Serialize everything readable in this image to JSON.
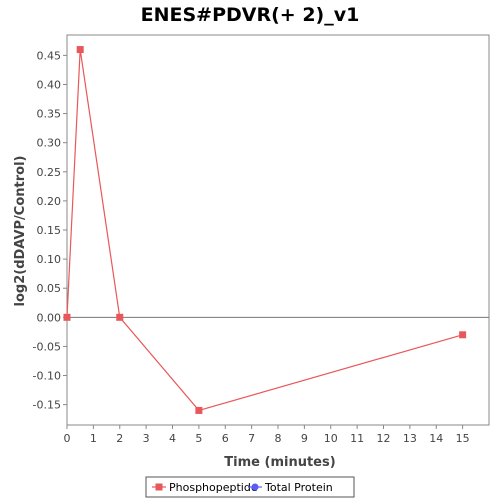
{
  "chart_data": {
    "type": "line",
    "title": "ENES#PDVR(+ 2)_v1",
    "xlabel": "Time (minutes)",
    "ylabel": "log2(dDAVP/Control)",
    "xlim": [
      0,
      16
    ],
    "ylim": [
      -0.185,
      0.485
    ],
    "xticks": [
      0,
      1,
      2,
      3,
      4,
      5,
      6,
      7,
      8,
      9,
      10,
      11,
      12,
      13,
      14,
      15
    ],
    "yticks": [
      -0.15,
      -0.1,
      -0.05,
      0.0,
      0.05,
      0.1,
      0.15,
      0.2,
      0.25,
      0.3,
      0.35,
      0.4,
      0.45
    ],
    "reference_line_y": 0,
    "series": [
      {
        "name": "Phosphopeptide",
        "color": "#e8575a",
        "marker": "square",
        "x": [
          0,
          0.5,
          2,
          5,
          15
        ],
        "y": [
          0.0,
          0.46,
          0.0,
          -0.16,
          -0.03
        ]
      },
      {
        "name": "Total Protein",
        "color": "#5b5bf5",
        "marker": "circle",
        "x": [],
        "y": []
      }
    ],
    "legend_position": "bottom-center"
  }
}
